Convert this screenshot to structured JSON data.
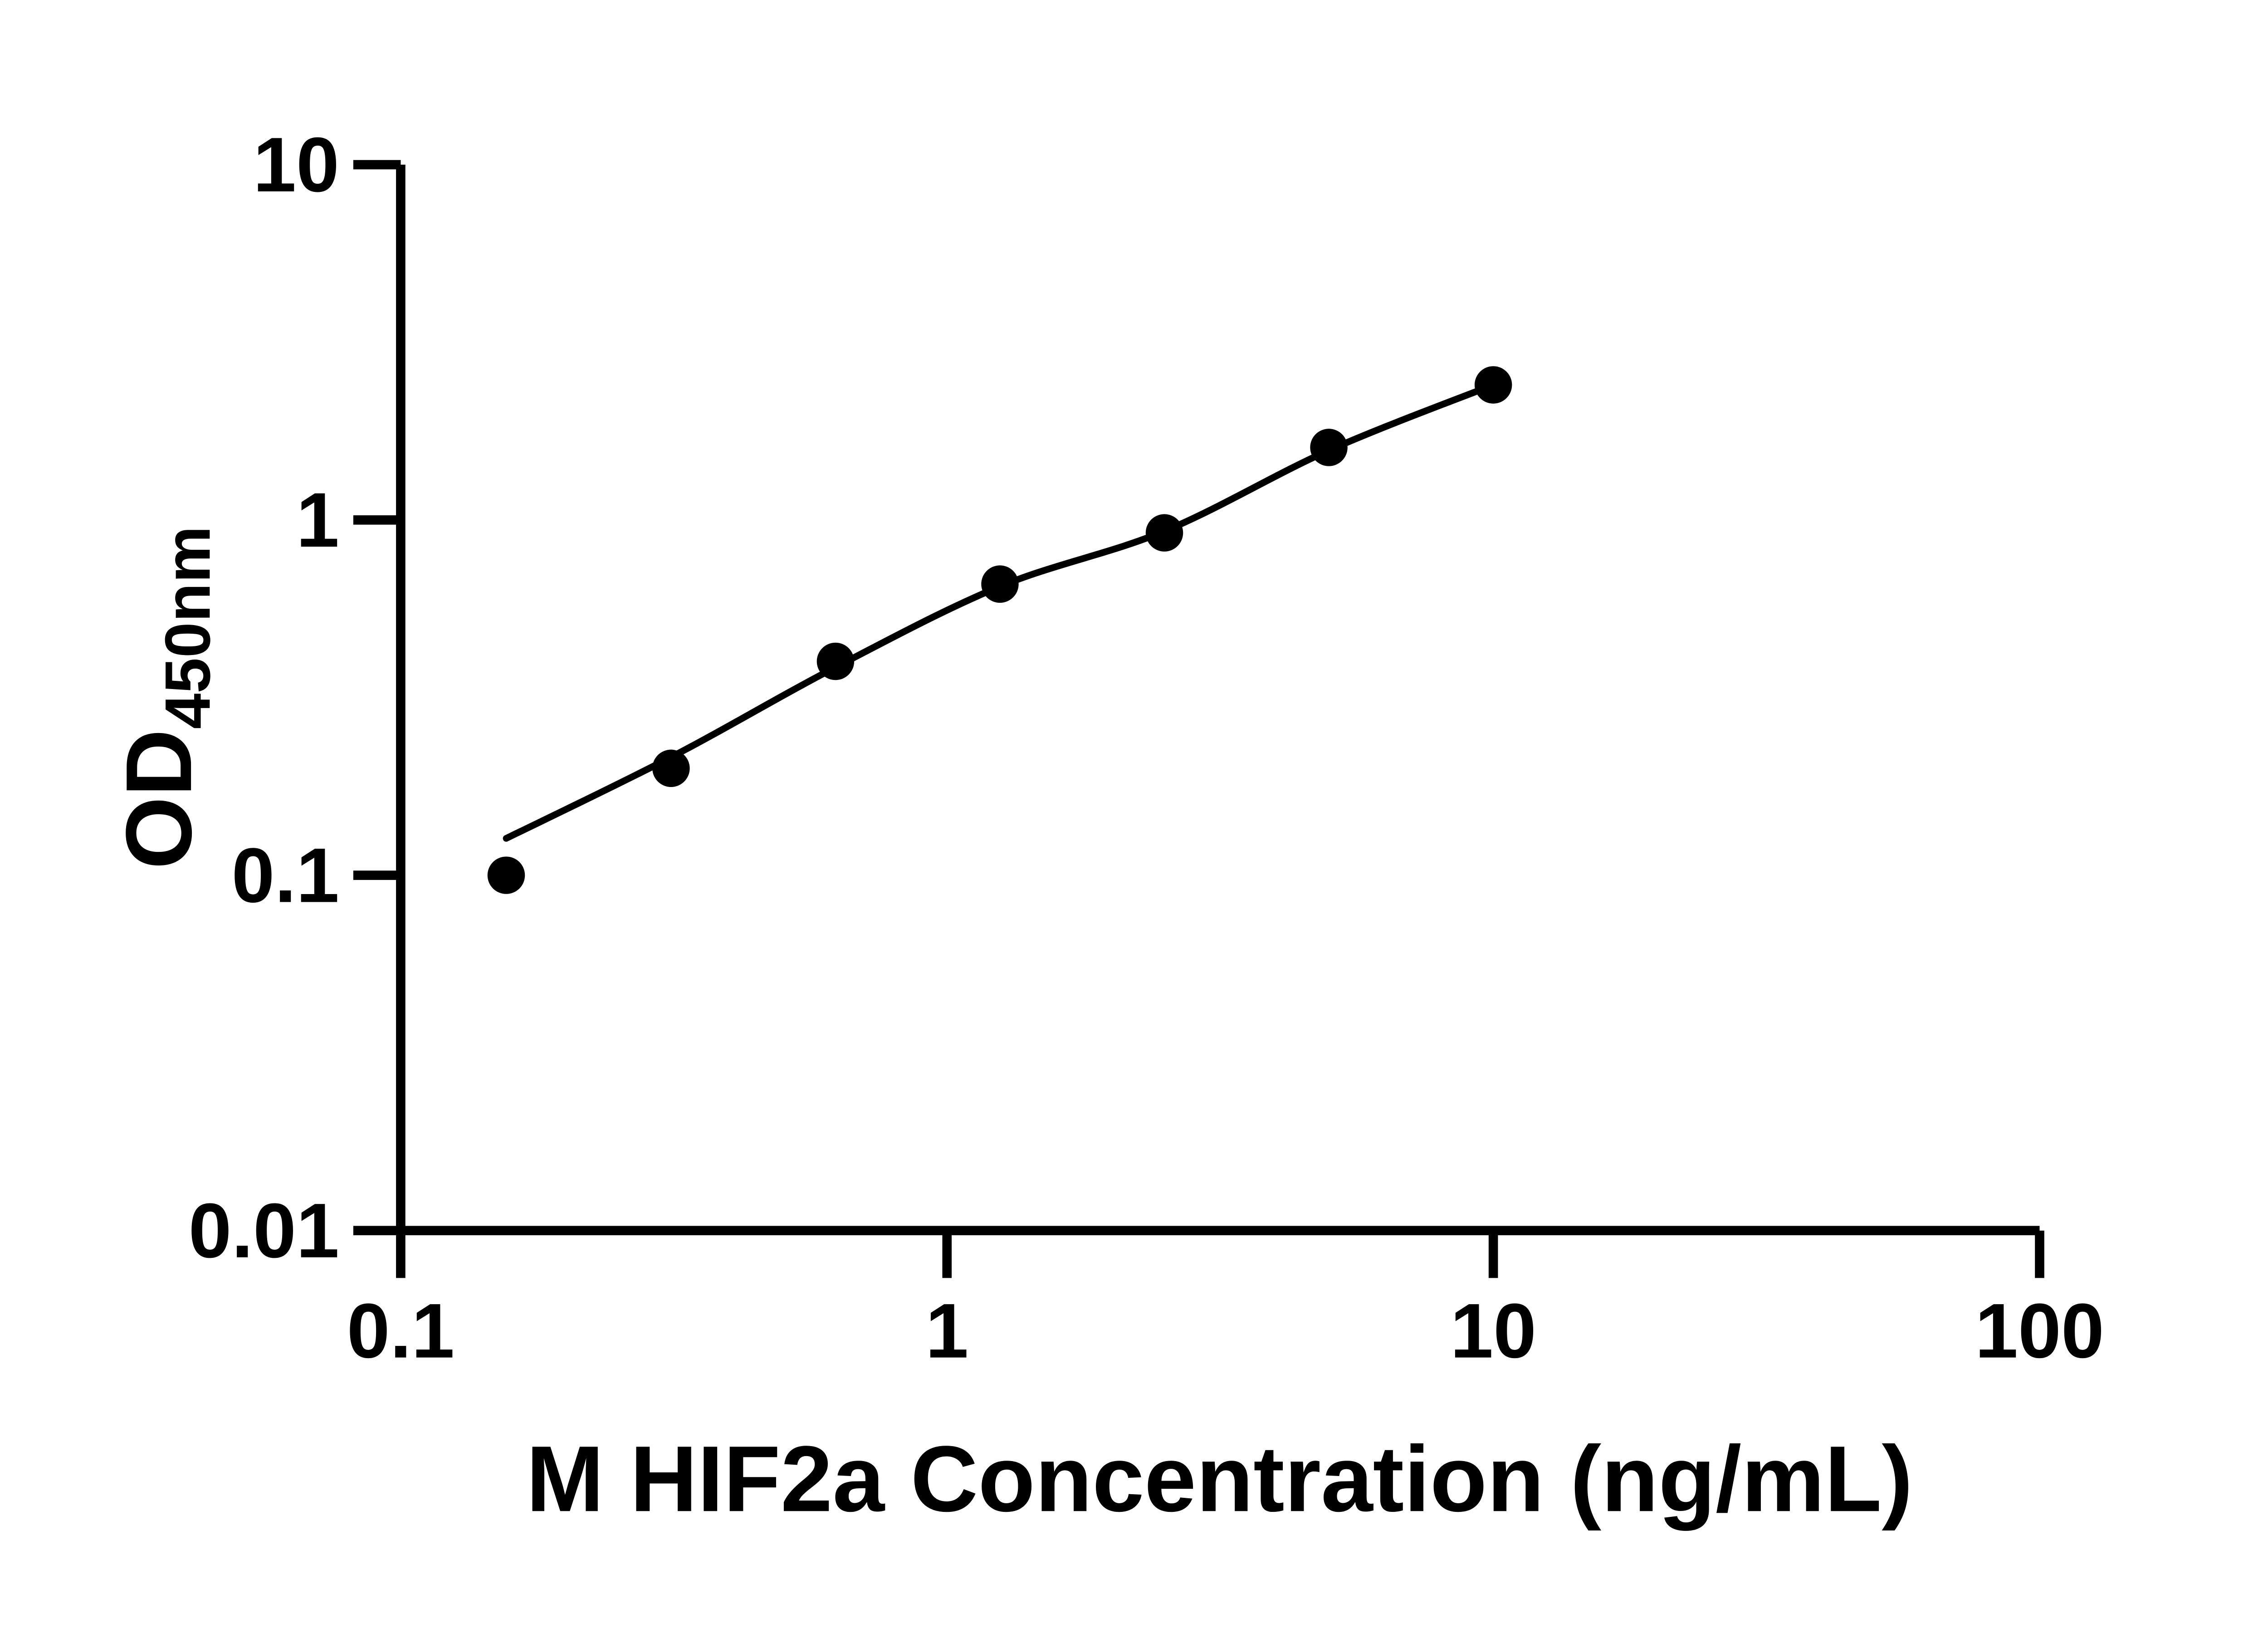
{
  "figure": {
    "background": "#ffffff",
    "foreground": "#000000"
  },
  "chart_data": {
    "type": "scatter",
    "xlabel": "M HIF2a Concentration (ng/mL)",
    "ylabel_main": "OD",
    "ylabel_subscript": "450nm",
    "x_scale": "log",
    "y_scale": "log",
    "xlim": [
      0.1,
      100
    ],
    "ylim": [
      0.01,
      10
    ],
    "x_tick_values": [
      0.1,
      1,
      10,
      100
    ],
    "x_tick_labels": [
      "0.1",
      "1",
      "10",
      "100"
    ],
    "y_tick_values": [
      10,
      1,
      0.1,
      0.01
    ],
    "y_tick_labels": [
      "10",
      "1",
      "0.1",
      "0.01"
    ],
    "grid": false,
    "legend": false,
    "marker_color": "#000000",
    "line_color": "#000000",
    "series": [
      {
        "marker": "filled-circle",
        "x": [
          0.156,
          0.3125,
          0.625,
          1.25,
          2.5,
          5,
          10
        ],
        "y": [
          0.1,
          0.2,
          0.4,
          0.66,
          0.92,
          1.6,
          2.4
        ]
      }
    ],
    "fit_curve": {
      "x": [
        0.156,
        0.3125,
        0.625,
        1.25,
        2.5,
        5,
        10
      ],
      "y": [
        0.127,
        0.215,
        0.385,
        0.65,
        0.93,
        1.57,
        2.4
      ]
    }
  }
}
